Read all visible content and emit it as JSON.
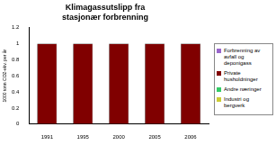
{
  "chart_data": {
    "type": "bar",
    "title": "Klimagassutslipp fra stasjonær forbrenning",
    "y_label": "1000 tonn CO2-ekv. per år",
    "categories": [
      "1991",
      "1995",
      "2000",
      "2005",
      "2006"
    ],
    "series": [
      {
        "name": "Forbrenning av avfall og deponigass",
        "color": "#9966cc",
        "values": [
          0,
          0,
          0,
          0,
          0
        ]
      },
      {
        "name": "Private husholdninger",
        "color": "#800000",
        "values": [
          1,
          1,
          1,
          1,
          1
        ]
      },
      {
        "name": "Andre næringer",
        "color": "#33cc66",
        "values": [
          0,
          0,
          0,
          0,
          0
        ]
      },
      {
        "name": "Industri og bergverk",
        "color": "#cccc33",
        "values": [
          0,
          0,
          0,
          0,
          0
        ]
      }
    ],
    "stacked": true,
    "grid": false,
    "legend": "right",
    "ylim": [
      0,
      1.2
    ],
    "yticks": [
      0,
      0.2,
      0.4,
      0.6,
      0.8,
      1,
      1.2
    ]
  }
}
